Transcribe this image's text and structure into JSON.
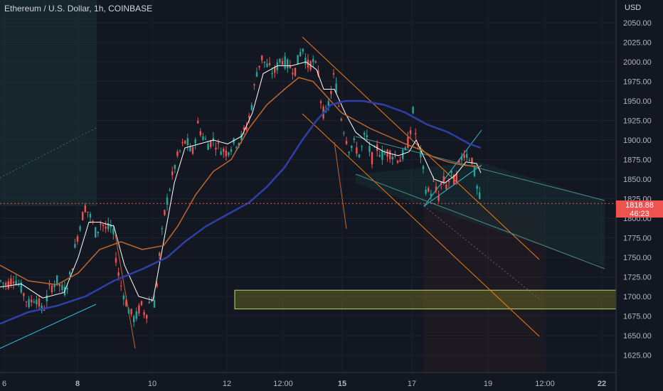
{
  "header": {
    "title": "Ethereum / U.S. Dollar, 1h, COINBASE",
    "currency": "USD"
  },
  "price_tag": {
    "price": "1818.88",
    "countdown": "46:23"
  },
  "colors": {
    "background": "#131722",
    "up": "#26a69a",
    "down": "#ef5350",
    "ma_fast": "#ffffff",
    "ma_mid": "#c2662d",
    "ma_slow": "#2e3fa8",
    "channel": "#f57c00",
    "cyan": "#26c6da",
    "zone": "#9e9d24"
  },
  "chart_data": {
    "type": "candlestick",
    "title": "Ethereum / U.S. Dollar, 1h, COINBASE",
    "ylabel": "USD",
    "ylim": [
      1605,
      2070
    ],
    "y_ticks": [
      "1625.00",
      "1650.00",
      "1675.00",
      "1700.00",
      "1725.00",
      "1750.00",
      "1775.00",
      "1800.00",
      "1825.00",
      "1850.00",
      "1875.00",
      "1900.00",
      "1925.00",
      "1950.00",
      "1975.00",
      "2000.00",
      "2025.00",
      "2050.00"
    ],
    "x_ticks": [
      "6",
      "8",
      "10",
      "12",
      "12:00",
      "15",
      "17",
      "19",
      "12:00",
      "22"
    ],
    "last_price": 1818.88,
    "support_zone": [
      1684,
      1708
    ],
    "price_path": [
      [
        0,
        1720
      ],
      [
        10,
        1715
      ],
      [
        20,
        1725
      ],
      [
        30,
        1710
      ],
      [
        40,
        1690
      ],
      [
        50,
        1700
      ],
      [
        60,
        1680
      ],
      [
        70,
        1710
      ],
      [
        80,
        1720
      ],
      [
        90,
        1705
      ],
      [
        100,
        1730
      ],
      [
        105,
        1760
      ],
      [
        112,
        1790
      ],
      [
        120,
        1815
      ],
      [
        128,
        1800
      ],
      [
        135,
        1780
      ],
      [
        142,
        1795
      ],
      [
        150,
        1785
      ],
      [
        158,
        1790
      ],
      [
        163,
        1750
      ],
      [
        168,
        1720
      ],
      [
        175,
        1700
      ],
      [
        182,
        1680
      ],
      [
        190,
        1670
      ],
      [
        198,
        1690
      ],
      [
        205,
        1675
      ],
      [
        212,
        1700
      ],
      [
        218,
        1690
      ],
      [
        225,
        1760
      ],
      [
        232,
        1810
      ],
      [
        240,
        1845
      ],
      [
        248,
        1875
      ],
      [
        255,
        1890
      ],
      [
        262,
        1900
      ],
      [
        270,
        1880
      ],
      [
        278,
        1920
      ],
      [
        285,
        1905
      ],
      [
        292,
        1895
      ],
      [
        300,
        1900
      ],
      [
        308,
        1890
      ],
      [
        318,
        1885
      ],
      [
        328,
        1895
      ],
      [
        338,
        1900
      ],
      [
        348,
        1920
      ],
      [
        355,
        1950
      ],
      [
        360,
        1985
      ],
      [
        368,
        2005
      ],
      [
        375,
        1995
      ],
      [
        385,
        1985
      ],
      [
        395,
        2005
      ],
      [
        405,
        1995
      ],
      [
        415,
        1990
      ],
      [
        425,
        2020
      ],
      [
        432,
        1995
      ],
      [
        440,
        2000
      ],
      [
        448,
        1985
      ],
      [
        452,
        1940
      ],
      [
        458,
        1930
      ],
      [
        465,
        1960
      ],
      [
        470,
        1985
      ],
      [
        476,
        1945
      ],
      [
        482,
        1920
      ],
      [
        490,
        1890
      ],
      [
        498,
        1895
      ],
      [
        506,
        1880
      ],
      [
        514,
        1910
      ],
      [
        522,
        1875
      ],
      [
        530,
        1890
      ],
      [
        538,
        1880
      ],
      [
        546,
        1885
      ],
      [
        554,
        1880
      ],
      [
        562,
        1875
      ],
      [
        570,
        1885
      ],
      [
        576,
        1905
      ],
      [
        580,
        1940
      ],
      [
        586,
        1895
      ],
      [
        592,
        1880
      ],
      [
        598,
        1840
      ],
      [
        604,
        1830
      ],
      [
        610,
        1845
      ],
      [
        616,
        1825
      ],
      [
        622,
        1850
      ],
      [
        628,
        1840
      ],
      [
        634,
        1855
      ],
      [
        640,
        1845
      ],
      [
        646,
        1870
      ],
      [
        652,
        1885
      ],
      [
        658,
        1880
      ],
      [
        664,
        1875
      ],
      [
        670,
        1840
      ],
      [
        676,
        1818.88
      ]
    ],
    "moving_averages": [
      {
        "name": "fast",
        "points": [
          [
            0,
            1712
          ],
          [
            30,
            1716
          ],
          [
            60,
            1698
          ],
          [
            90,
            1705
          ],
          [
            110,
            1750
          ],
          [
            125,
            1795
          ],
          [
            140,
            1795
          ],
          [
            160,
            1790
          ],
          [
            175,
            1740
          ],
          [
            195,
            1700
          ],
          [
            215,
            1695
          ],
          [
            230,
            1770
          ],
          [
            245,
            1845
          ],
          [
            260,
            1890
          ],
          [
            280,
            1895
          ],
          [
            300,
            1900
          ],
          [
            320,
            1895
          ],
          [
            340,
            1905
          ],
          [
            355,
            1935
          ],
          [
            370,
            1985
          ],
          [
            390,
            1995
          ],
          [
            410,
            1995
          ],
          [
            430,
            2000
          ],
          [
            445,
            1990
          ],
          [
            455,
            1965
          ],
          [
            470,
            1965
          ],
          [
            485,
            1935
          ],
          [
            500,
            1910
          ],
          [
            520,
            1895
          ],
          [
            540,
            1885
          ],
          [
            560,
            1880
          ],
          [
            575,
            1885
          ],
          [
            585,
            1900
          ],
          [
            595,
            1880
          ],
          [
            610,
            1850
          ],
          [
            625,
            1845
          ],
          [
            640,
            1855
          ],
          [
            655,
            1872
          ],
          [
            670,
            1870
          ],
          [
            676,
            1858
          ]
        ]
      },
      {
        "name": "mid",
        "points": [
          [
            0,
            1740
          ],
          [
            40,
            1720
          ],
          [
            80,
            1715
          ],
          [
            110,
            1730
          ],
          [
            140,
            1760
          ],
          [
            170,
            1770
          ],
          [
            200,
            1760
          ],
          [
            230,
            1765
          ],
          [
            250,
            1790
          ],
          [
            275,
            1830
          ],
          [
            300,
            1860
          ],
          [
            325,
            1875
          ],
          [
            350,
            1915
          ],
          [
            375,
            1945
          ],
          [
            400,
            1965
          ],
          [
            420,
            1980
          ],
          [
            440,
            1975
          ],
          [
            460,
            1955
          ],
          [
            480,
            1935
          ],
          [
            500,
            1925
          ],
          [
            520,
            1915
          ],
          [
            545,
            1905
          ],
          [
            570,
            1895
          ],
          [
            590,
            1888
          ],
          [
            610,
            1878
          ],
          [
            630,
            1872
          ],
          [
            650,
            1868
          ],
          [
            676,
            1866
          ]
        ]
      },
      {
        "name": "slow",
        "points": [
          [
            0,
            1665
          ],
          [
            40,
            1680
          ],
          [
            80,
            1688
          ],
          [
            120,
            1700
          ],
          [
            160,
            1720
          ],
          [
            200,
            1735
          ],
          [
            235,
            1750
          ],
          [
            260,
            1770
          ],
          [
            290,
            1790
          ],
          [
            320,
            1805
          ],
          [
            350,
            1820
          ],
          [
            375,
            1840
          ],
          [
            400,
            1865
          ],
          [
            425,
            1900
          ],
          [
            445,
            1925
          ],
          [
            465,
            1945
          ],
          [
            485,
            1950
          ],
          [
            510,
            1950
          ],
          [
            540,
            1945
          ],
          [
            570,
            1935
          ],
          [
            600,
            1920
          ],
          [
            630,
            1910
          ],
          [
            660,
            1895
          ],
          [
            676,
            1890
          ]
        ]
      }
    ]
  }
}
